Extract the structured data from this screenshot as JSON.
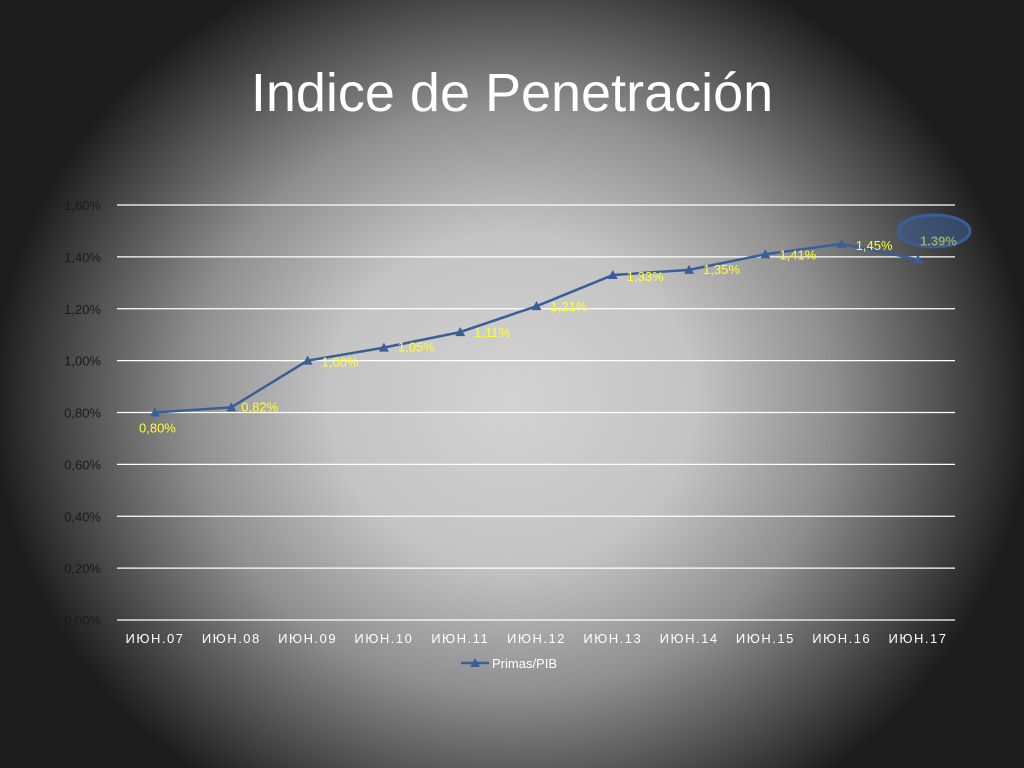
{
  "slide": {
    "title": "Indice de Penetración"
  },
  "colors": {
    "series_line": "#3a5f96",
    "data_label": "#ffff33",
    "highlight_label": "#9aa868",
    "highlight_ellipse": "#3a5f96",
    "gridline": "#ffffff"
  },
  "chart_data": {
    "type": "line",
    "title": "",
    "xlabel": "",
    "ylabel": "",
    "ylim": [
      0,
      0.016
    ],
    "y_ticks": [
      "0,00%",
      "0,20%",
      "0,40%",
      "0,60%",
      "0,80%",
      "1,00%",
      "1,20%",
      "1,40%",
      "1,60%"
    ],
    "grid": true,
    "legend_position": "bottom",
    "categories": [
      "ИЮН.07",
      "ИЮН.08",
      "ИЮН.09",
      "ИЮН.10",
      "ИЮН.11",
      "ИЮН.12",
      "ИЮН.13",
      "ИЮН.14",
      "ИЮН.15",
      "ИЮН.16",
      "ИЮН.17"
    ],
    "series": [
      {
        "name": "Primas/PIB",
        "values": [
          0.008,
          0.0082,
          0.01,
          0.0105,
          0.0111,
          0.0121,
          0.0133,
          0.0135,
          0.0141,
          0.0145,
          0.0139
        ],
        "labels": [
          "0,80%",
          "0,82%",
          "1,00%",
          "1,05%",
          "1,11%",
          "1,21%",
          "1,33%",
          "1,35%",
          "1,41%",
          "1,45%",
          "1.39%"
        ],
        "marker": "triangle"
      }
    ],
    "highlighted_point": {
      "category": "ИЮН.17",
      "label": "1.39%"
    }
  }
}
